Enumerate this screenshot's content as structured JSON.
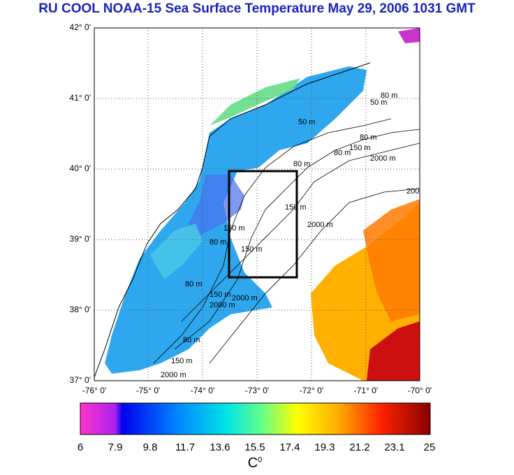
{
  "title": "RU COOL  NOAA-15 Sea Surface Temperature May 29, 2006 1031 GMT",
  "lat_labels": [
    "42° 0'",
    "41° 0'",
    "40° 0'",
    "39° 0'",
    "38° 0'",
    "37° 0'"
  ],
  "lon_labels": [
    "-76° 0'",
    "-75° 0'",
    "-74° 0'",
    "-73° 0'",
    "-72° 0'",
    "-71° 0'",
    "-70° 0'"
  ],
  "contour_labels": [
    "50 m",
    "50 m",
    "80 m",
    "80 m",
    "150 m",
    "80 m",
    "2000 m",
    "150 m",
    "2000 m",
    "80 m",
    "150 m",
    "2000 m",
    "150 m",
    "80 m",
    "2000 m",
    "150 m",
    "80 m",
    "2000 m",
    "80 m",
    "150 m",
    "200"
  ],
  "colorbar": {
    "labels": [
      "6",
      "7.9",
      "9.8",
      "11.7",
      "13.6",
      "15.5",
      "17.4",
      "19.3",
      "21.2",
      "23.1",
      "25"
    ],
    "unit": "C",
    "unit_sup": "0",
    "min": 6,
    "max": 25
  },
  "colors": {
    "title": "#1a23b8",
    "land": "#ffffff",
    "box": "#000000"
  }
}
